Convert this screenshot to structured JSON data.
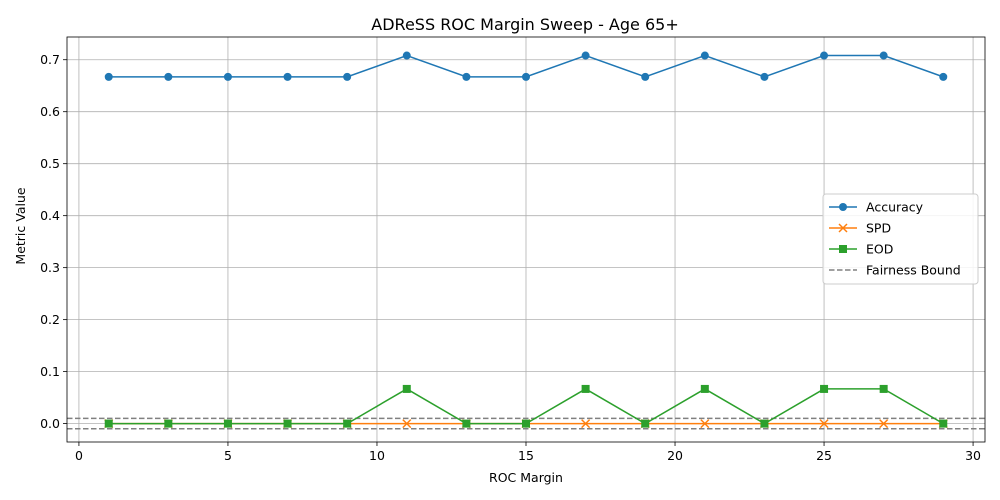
{
  "chart_data": {
    "type": "line",
    "title": "ADReSS ROC Margin Sweep - Age 65+",
    "xlabel": "ROC Margin",
    "ylabel": "Metric Value",
    "xlim": [
      -0.4,
      30.4
    ],
    "ylim": [
      -0.0354,
      0.7437
    ],
    "xticks": [
      0,
      5,
      10,
      15,
      20,
      25,
      30
    ],
    "yticks": [
      0.0,
      0.1,
      0.2,
      0.3,
      0.4,
      0.5,
      0.6,
      0.7
    ],
    "grid": true,
    "legend_position": "center-right",
    "x": [
      1,
      3,
      5,
      7,
      9,
      11,
      13,
      15,
      17,
      19,
      21,
      23,
      25,
      27,
      29
    ],
    "series": [
      {
        "name": "Accuracy",
        "color": "#1f77b4",
        "marker": "circle",
        "values": [
          0.667,
          0.667,
          0.667,
          0.667,
          0.667,
          0.708,
          0.667,
          0.667,
          0.708,
          0.667,
          0.708,
          0.667,
          0.708,
          0.708,
          0.667
        ]
      },
      {
        "name": "SPD",
        "color": "#ff7f0e",
        "marker": "x",
        "values": [
          0,
          0,
          0,
          0,
          0,
          0,
          0,
          0,
          0,
          0,
          0,
          0,
          0,
          0,
          0
        ]
      },
      {
        "name": "EOD",
        "color": "#2ca02c",
        "marker": "square",
        "values": [
          0,
          0,
          0,
          0,
          0,
          0.0667,
          0,
          0,
          0.0667,
          0,
          0.0667,
          0,
          0.0667,
          0.0667,
          0
        ]
      }
    ],
    "reference_lines": [
      {
        "name": "Fairness Bound",
        "color": "#808080",
        "style": "dashed",
        "values": [
          0.01,
          -0.01
        ]
      }
    ]
  }
}
